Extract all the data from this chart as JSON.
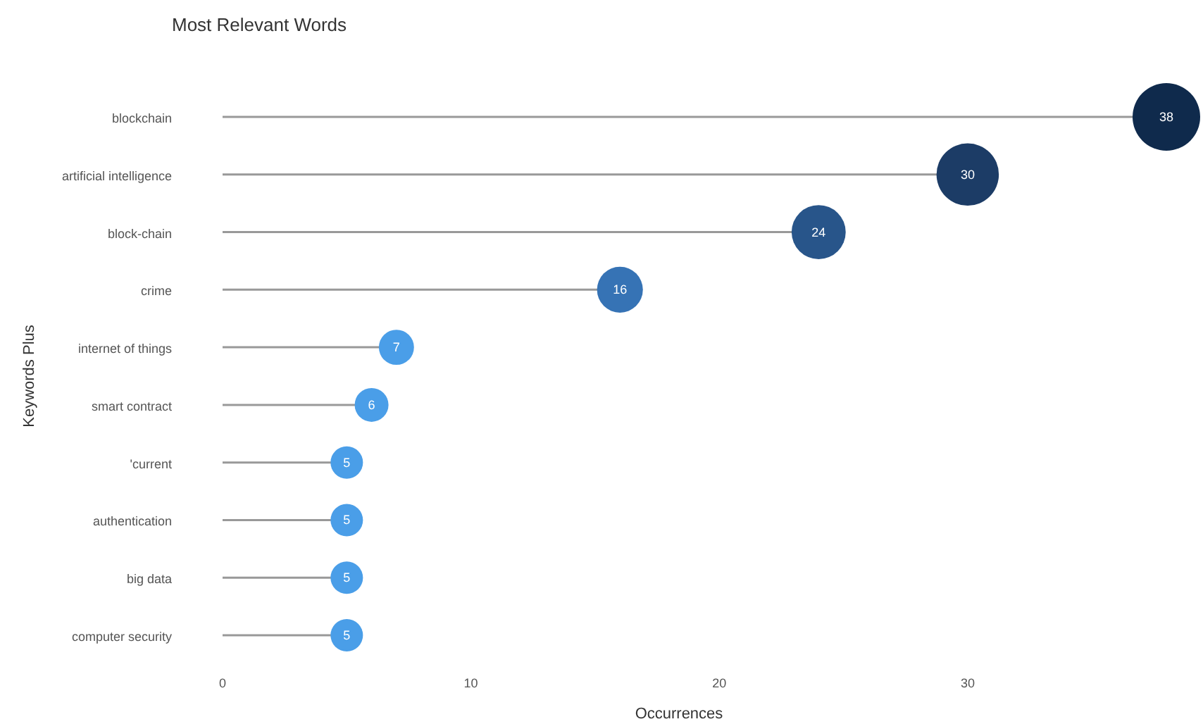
{
  "chart_data": {
    "type": "lollipop",
    "orientation": "horizontal",
    "title": "Most Relevant Words",
    "xlabel": "Occurrences",
    "ylabel": "Keywords Plus",
    "categories": [
      "blockchain",
      "artificial intelligence",
      "block-chain",
      "crime",
      "internet of things",
      "smart contract",
      "'current",
      "authentication",
      "big data",
      "computer security"
    ],
    "values": [
      38,
      30,
      24,
      16,
      7,
      6,
      5,
      5,
      5,
      5
    ],
    "colors": [
      "#0f2a4c",
      "#1c3c66",
      "#28558a",
      "#3673b5",
      "#4a9ee8",
      "#4a9ee8",
      "#4a9ee8",
      "#4a9ee8",
      "#4a9ee8",
      "#4a9ee8"
    ],
    "sizes": [
      1,
      0.85,
      0.64,
      0.46,
      0.27,
      0.25,
      0.23,
      0.23,
      0.23,
      0.23
    ],
    "xlim": [
      0,
      38
    ],
    "xticks": [
      0,
      10,
      20,
      30
    ],
    "data_labels": true,
    "grid": false
  }
}
